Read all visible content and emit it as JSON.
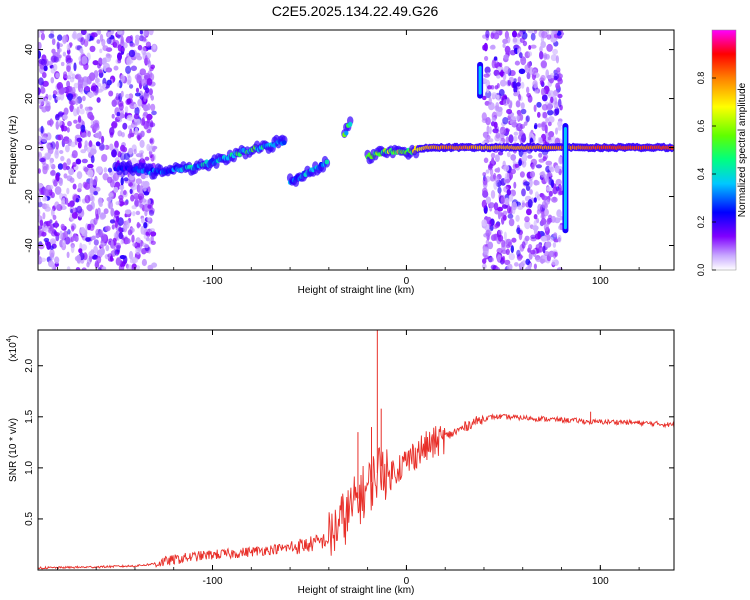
{
  "title": "C2E5.2025.134.22.49.G26",
  "chart_data": [
    {
      "type": "heatmap",
      "name": "spectrogram",
      "xlabel": "Height of straight line (km)",
      "ylabel": "Frequency (Hz)",
      "xlim": [
        -190,
        138
      ],
      "ylim": [
        -50,
        48
      ],
      "x_ticks": [
        -100,
        0,
        100
      ],
      "y_ticks": [
        -40,
        -20,
        0,
        20,
        40
      ],
      "colorbar": {
        "label": "Normalized spectral amplitude",
        "range": [
          0,
          1
        ],
        "ticks": [
          0.0,
          0.2,
          0.4,
          0.6,
          0.8
        ],
        "colors": [
          "#ffffff",
          "#c8a8ff",
          "#7f00ff",
          "#0000ff",
          "#00d0ff",
          "#00ff80",
          "#80ff00",
          "#ffff00",
          "#ff8000",
          "#ff0000",
          "#ff00ff"
        ]
      },
      "noise_bands": [
        {
          "x": [
            -190,
            -130
          ],
          "y": [
            -50,
            48
          ],
          "level": 0.12
        },
        {
          "x": [
            40,
            80
          ],
          "y": [
            -50,
            48
          ],
          "level": 0.12
        }
      ],
      "signal_track": [
        {
          "x": -150,
          "freq": -8,
          "amp": 0.2
        },
        {
          "x": -140,
          "freq": -9,
          "amp": 0.25
        },
        {
          "x": -130,
          "freq": -10,
          "amp": 0.3
        },
        {
          "x": -120,
          "freq": -9,
          "amp": 0.3
        },
        {
          "x": -110,
          "freq": -8,
          "amp": 0.35
        },
        {
          "x": -100,
          "freq": -6,
          "amp": 0.35
        },
        {
          "x": -90,
          "freq": -3,
          "amp": 0.4
        },
        {
          "x": -80,
          "freq": -1,
          "amp": 0.45
        },
        {
          "x": -70,
          "freq": 1,
          "amp": 0.4
        },
        {
          "x": -62,
          "freq": 3,
          "amp": 0.35
        },
        {
          "x": -60,
          "freq": -14,
          "amp": 0.3
        },
        {
          "x": -50,
          "freq": -10,
          "amp": 0.35
        },
        {
          "x": -40,
          "freq": -6,
          "amp": 0.35
        },
        {
          "x": -32,
          "freq": 5,
          "amp": 0.45
        },
        {
          "x": -28,
          "freq": 12,
          "amp": 0.4
        },
        {
          "x": -20,
          "freq": -4,
          "amp": 0.5
        },
        {
          "x": -10,
          "freq": -1,
          "amp": 0.55
        },
        {
          "x": 0,
          "freq": -2,
          "amp": 0.55
        },
        {
          "x": 10,
          "freq": 0,
          "amp": 0.75
        },
        {
          "x": 20,
          "freq": 0,
          "amp": 0.8
        },
        {
          "x": 30,
          "freq": 0,
          "amp": 0.8
        },
        {
          "x": 38,
          "freq": 0,
          "amp": 0.75
        },
        {
          "x": 85,
          "freq": 0,
          "amp": 0.8
        },
        {
          "x": 100,
          "freq": 0,
          "amp": 0.85
        },
        {
          "x": 120,
          "freq": 0,
          "amp": 0.85
        },
        {
          "x": 138,
          "freq": 0,
          "amp": 0.85
        }
      ]
    },
    {
      "type": "line",
      "name": "snr",
      "xlabel": "Height of straight line (km)",
      "ylabel": "SNR (10 * v/v)",
      "y_multiplier_label": "(x10",
      "y_multiplier_exp": "4",
      "y_multiplier_close": ")",
      "xlim": [
        -190,
        138
      ],
      "ylim": [
        0,
        2.35
      ],
      "x_ticks": [
        -100,
        0,
        100
      ],
      "y_ticks": [
        0.5,
        1.0,
        1.5,
        2.0
      ],
      "color": "#e8302a",
      "x": [
        -190,
        -160,
        -140,
        -130,
        -120,
        -110,
        -100,
        -90,
        -80,
        -70,
        -60,
        -50,
        -40,
        -35,
        -30,
        -25,
        -20,
        -15,
        -12,
        -10,
        -5,
        0,
        5,
        10,
        15,
        20,
        25,
        30,
        35,
        40,
        45,
        50,
        60,
        70,
        80,
        90,
        95,
        100,
        110,
        120,
        130,
        138
      ],
      "y": [
        0.02,
        0.03,
        0.04,
        0.06,
        0.1,
        0.13,
        0.15,
        0.16,
        0.18,
        0.2,
        0.22,
        0.25,
        0.3,
        0.45,
        0.55,
        0.7,
        0.8,
        0.95,
        1.05,
        0.9,
        1.0,
        1.05,
        1.15,
        1.2,
        1.25,
        1.3,
        1.35,
        1.4,
        1.45,
        1.48,
        1.5,
        1.5,
        1.49,
        1.48,
        1.47,
        1.46,
        1.45,
        1.45,
        1.45,
        1.44,
        1.43,
        1.42
      ],
      "spikes": [
        {
          "x": -15,
          "y": 2.35
        },
        {
          "x": -13,
          "y": 1.58
        },
        {
          "x": -18,
          "y": 1.4
        },
        {
          "x": -25,
          "y": 1.35
        },
        {
          "x": 95,
          "y": 1.55
        }
      ]
    }
  ]
}
